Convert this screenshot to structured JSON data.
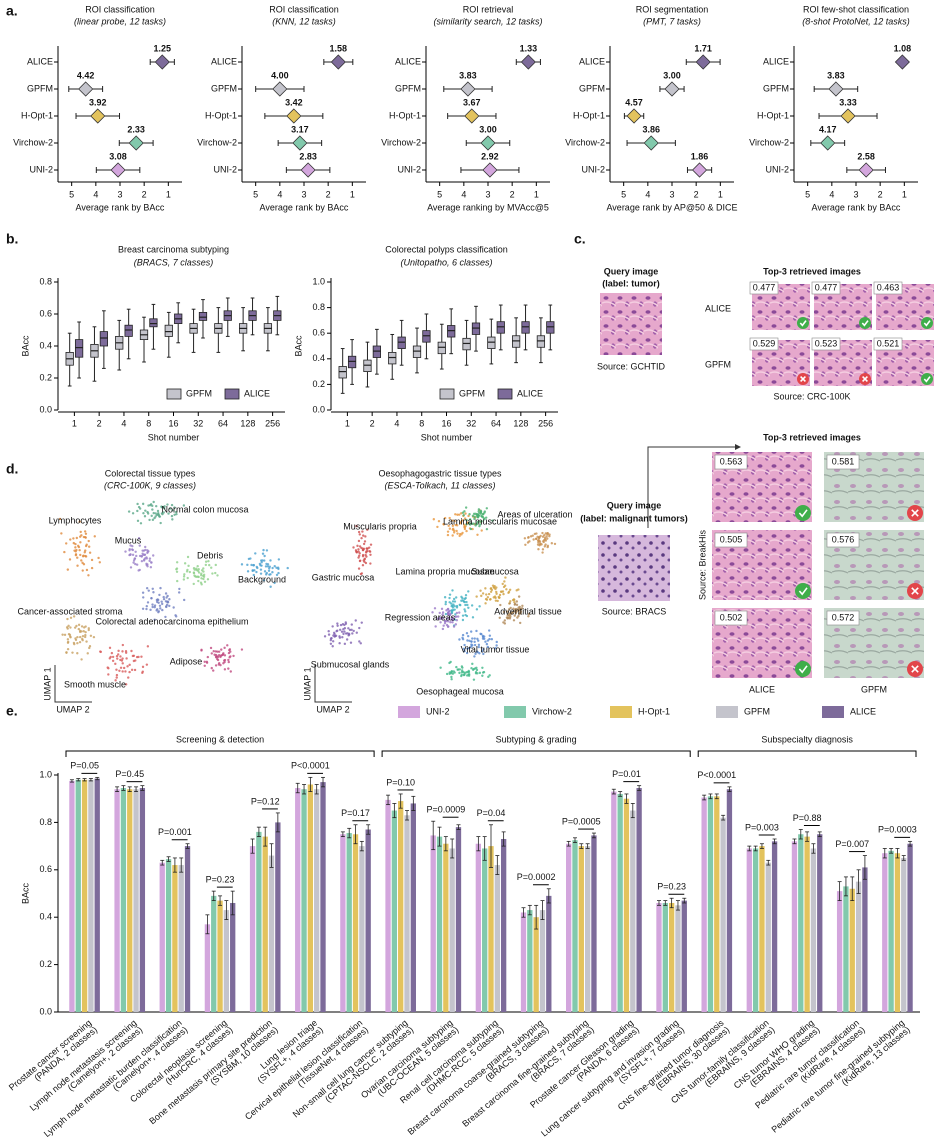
{
  "panels": [
    "a.",
    "b.",
    "c.",
    "d.",
    "e."
  ],
  "chart_data": [
    {
      "type": "rank",
      "title": "ROI classification",
      "subtitle": "(linear probe, 12 tasks)",
      "xlabel": "Average rank by BAcc",
      "categories": [
        "ALICE",
        "GPFM",
        "H-Opt-1",
        "Virchow-2",
        "UNI-2"
      ],
      "colors": [
        "#7d6b9a",
        "#c4c4cc",
        "#e3c35d",
        "#82c9ac",
        "#d3a6dd"
      ],
      "values": [
        1.25,
        4.42,
        3.92,
        2.33,
        3.08
      ],
      "value_labels": [
        "1.25",
        "4.42",
        "3.92",
        "2.33",
        "3.08"
      ],
      "errors": [
        0.5,
        0.7,
        0.9,
        0.7,
        0.9
      ],
      "xlim": [
        5.4,
        0.6
      ],
      "xticks": [
        5,
        4,
        3,
        2,
        1
      ]
    },
    {
      "type": "rank",
      "title": "ROI classification",
      "subtitle": "(KNN, 12 tasks)",
      "xlabel": "Average rank by BAcc",
      "categories": [
        "ALICE",
        "GPFM",
        "H-Opt-1",
        "Virchow-2",
        "UNI-2"
      ],
      "colors": [
        "#7d6b9a",
        "#c4c4cc",
        "#e3c35d",
        "#82c9ac",
        "#d3a6dd"
      ],
      "values": [
        1.58,
        4.0,
        3.42,
        3.17,
        2.83
      ],
      "value_labels": [
        "1.58",
        "4.00",
        "3.42",
        "3.17",
        "2.83"
      ],
      "errors": [
        0.6,
        1.0,
        1.2,
        0.9,
        0.9
      ],
      "xlim": [
        5.4,
        0.6
      ],
      "xticks": [
        5,
        4,
        3,
        2,
        1
      ]
    },
    {
      "type": "rank",
      "title": "ROI retrieval",
      "subtitle": "(similarity search, 12 tasks)",
      "xlabel": "Average ranking by MVAcc@5",
      "categories": [
        "ALICE",
        "GPFM",
        "H-Opt-1",
        "Virchow-2",
        "UNI-2"
      ],
      "colors": [
        "#7d6b9a",
        "#c4c4cc",
        "#e3c35d",
        "#82c9ac",
        "#d3a6dd"
      ],
      "values": [
        1.33,
        3.83,
        3.67,
        3.0,
        2.92
      ],
      "value_labels": [
        "1.33",
        "3.83",
        "3.67",
        "3.00",
        "2.92"
      ],
      "errors": [
        0.5,
        1.0,
        1.0,
        0.9,
        1.2
      ],
      "xlim": [
        5.4,
        0.6
      ],
      "xticks": [
        5,
        4,
        3,
        2,
        1
      ]
    },
    {
      "type": "rank",
      "title": "ROI segmentation",
      "subtitle": "(PMT, 7 tasks)",
      "xlabel": "Average rank by AP@50 & DICE",
      "categories": [
        "ALICE",
        "GPFM",
        "H-Opt-1",
        "Virchow-2",
        "UNI-2"
      ],
      "colors": [
        "#7d6b9a",
        "#c4c4cc",
        "#e3c35d",
        "#82c9ac",
        "#d3a6dd"
      ],
      "values": [
        1.71,
        3.0,
        4.57,
        3.86,
        1.86
      ],
      "value_labels": [
        "1.71",
        "3.00",
        "4.57",
        "3.86",
        "1.86"
      ],
      "errors": [
        0.7,
        0.5,
        0.4,
        1.0,
        0.5
      ],
      "xlim": [
        5.4,
        0.6
      ],
      "xticks": [
        5,
        4,
        3,
        2,
        1
      ]
    },
    {
      "type": "rank",
      "title": "ROI few-shot classification",
      "subtitle": "(8-shot ProtoNet, 12 tasks)",
      "xlabel": "Average rank by BAcc",
      "categories": [
        "ALICE",
        "GPFM",
        "H-Opt-1",
        "Virchow-2",
        "UNI-2"
      ],
      "colors": [
        "#7d6b9a",
        "#c4c4cc",
        "#e3c35d",
        "#82c9ac",
        "#d3a6dd"
      ],
      "values": [
        1.08,
        3.83,
        3.33,
        4.17,
        2.58
      ],
      "value_labels": [
        "1.08",
        "3.83",
        "3.33",
        "4.17",
        "2.58"
      ],
      "errors": [
        0.15,
        0.9,
        1.2,
        0.7,
        0.8
      ],
      "xlim": [
        5.4,
        0.6
      ],
      "xticks": [
        5,
        4,
        3,
        2,
        1
      ]
    },
    {
      "type": "box",
      "title": "Breast carcinoma subtyping",
      "subtitle": "(BRACS, 7 classes)",
      "ylabel": "BAcc",
      "xlabel": "Shot number",
      "categories": [
        1,
        2,
        4,
        8,
        16,
        32,
        64,
        128,
        256
      ],
      "legend": "lower right",
      "series": [
        {
          "name": "GPFM",
          "color": "#c4c4cc",
          "min": [
            0.15,
            0.18,
            0.25,
            0.3,
            0.33,
            0.36,
            0.36,
            0.37,
            0.37
          ],
          "q1": [
            0.28,
            0.33,
            0.38,
            0.44,
            0.46,
            0.48,
            0.48,
            0.48,
            0.48
          ],
          "median": [
            0.32,
            0.37,
            0.42,
            0.47,
            0.49,
            0.51,
            0.51,
            0.51,
            0.51
          ],
          "q3": [
            0.36,
            0.41,
            0.46,
            0.5,
            0.53,
            0.54,
            0.54,
            0.54,
            0.54
          ],
          "max": [
            0.48,
            0.52,
            0.56,
            0.58,
            0.61,
            0.63,
            0.64,
            0.64,
            0.64
          ]
        },
        {
          "name": "ALICE",
          "color": "#7d6b9a",
          "min": [
            0.2,
            0.26,
            0.32,
            0.38,
            0.42,
            0.45,
            0.46,
            0.47,
            0.47
          ],
          "q1": [
            0.33,
            0.4,
            0.46,
            0.52,
            0.54,
            0.56,
            0.56,
            0.56,
            0.56
          ],
          "median": [
            0.39,
            0.45,
            0.5,
            0.54,
            0.57,
            0.58,
            0.59,
            0.59,
            0.59
          ],
          "q3": [
            0.44,
            0.49,
            0.53,
            0.57,
            0.6,
            0.61,
            0.62,
            0.62,
            0.62
          ],
          "max": [
            0.55,
            0.62,
            0.63,
            0.66,
            0.67,
            0.69,
            0.7,
            0.7,
            0.71
          ]
        }
      ],
      "ylim": [
        0,
        0.8
      ],
      "yticks": [
        {
          "value": 0,
          "label": "0.0"
        },
        0.2,
        0.4,
        0.6,
        0.8
      ]
    },
    {
      "type": "box",
      "title": "Colorectal polyps classification",
      "subtitle": "(Unitopatho, 6 classes)",
      "ylabel": "BAcc",
      "xlabel": "Shot number",
      "categories": [
        1,
        2,
        4,
        8,
        16,
        32,
        64,
        128,
        256
      ],
      "legend": "lower right",
      "series": [
        {
          "name": "GPFM",
          "color": "#c4c4cc",
          "min": [
            0.13,
            0.18,
            0.24,
            0.29,
            0.32,
            0.35,
            0.36,
            0.37,
            0.37
          ],
          "q1": [
            0.25,
            0.3,
            0.36,
            0.41,
            0.44,
            0.47,
            0.48,
            0.49,
            0.49
          ],
          "median": [
            0.3,
            0.35,
            0.41,
            0.46,
            0.49,
            0.52,
            0.53,
            0.54,
            0.54
          ],
          "q3": [
            0.34,
            0.39,
            0.45,
            0.5,
            0.53,
            0.56,
            0.57,
            0.58,
            0.58
          ],
          "max": [
            0.48,
            0.53,
            0.59,
            0.64,
            0.67,
            0.7,
            0.71,
            0.72,
            0.72
          ]
        },
        {
          "name": "ALICE",
          "color": "#7d6b9a",
          "min": [
            0.2,
            0.28,
            0.35,
            0.4,
            0.44,
            0.46,
            0.47,
            0.47,
            0.47
          ],
          "q1": [
            0.33,
            0.41,
            0.48,
            0.53,
            0.57,
            0.59,
            0.6,
            0.6,
            0.6
          ],
          "median": [
            0.38,
            0.46,
            0.53,
            0.58,
            0.62,
            0.64,
            0.65,
            0.65,
            0.65
          ],
          "q3": [
            0.42,
            0.5,
            0.57,
            0.62,
            0.66,
            0.68,
            0.69,
            0.69,
            0.69
          ],
          "max": [
            0.55,
            0.63,
            0.7,
            0.75,
            0.79,
            0.81,
            0.82,
            0.82,
            0.82
          ]
        }
      ],
      "ylim": [
        0,
        1.0
      ],
      "yticks": [
        {
          "value": 0,
          "label": "0.0"
        },
        0.2,
        0.4,
        0.6,
        0.8,
        {
          "value": 1,
          "label": "1.0"
        }
      ]
    },
    {
      "type": "bar",
      "ylabel": "BAcc",
      "legend": "top",
      "groups": [
        "Screening & detection",
        "Subtyping & grading",
        "Subspecialty diagnosis"
      ],
      "categories": [
        "Prostate cancer screening",
        "Lymph node metastasis screening",
        "Lymph node metastatic burden classification",
        "Colorectal neoplasia screening",
        "Bone metastasis primary site prediction",
        "Lung lesion triage",
        "Cervical epithelial lesion classification",
        "Non-small cell lung cancer subtyping",
        "Ovarian carcinoma subtyping",
        "Renal cell carcinoma subtyping",
        "Breast carcinoma coarse-grained subtyping",
        "Breast carcinoma fine-grained subtyping",
        "Prostate cancer Gleason grading",
        "Lung cancer subtyping and invasion grading",
        "CNS fine-grained tumor diagnosis",
        "CNS tumor-family classification",
        "CNS tumor WHO grading",
        "Pediatric rare tumor classification",
        "Pediatric rare tumor fine-grained subtyping"
      ],
      "category_details": [
        "(PANDA, 2 classes)",
        "(Camelyon+, 2 classes)",
        "(Camelyon+, 4 classes)",
        "(HunCRC, 4 classes)",
        "(SYSBM, 10 classes)",
        "(SYSFL+, 4 classes)",
        "(TissueNet, 4 classes)",
        "(CPTAC-NSCLC, 2 classes)",
        "(UBC-OCEAN, 5 classes)",
        "(DHMC-RCC, 5 classes)",
        "(BRACS, 3 classes)",
        "(BRACS, 7 classes)",
        "(PANDA, 6 classes)",
        "(SYSFL+, 7 classes)",
        "(EBRAINS, 30 classes)",
        "(EBRAINS, 9 classes)",
        "(EBRAINS, 4 classes)",
        "(KidRare, 4 classes)",
        "(KidRare, 13 classes)"
      ],
      "p_values": [
        "P=0.05",
        "P=0.45",
        "P=0.001",
        "P=0.23",
        "P=0.12",
        "P<0.0001",
        "P=0.17",
        "P=0.10",
        "P=0.0009",
        "P=0.04",
        "P=0.0002",
        "P=0.0005",
        "P=0.01",
        "P=0.23",
        "P<0.0001",
        "P=0.003",
        "P=0.88",
        "P=0.007",
        "P=0.0003"
      ],
      "series": [
        {
          "name": "UNI-2",
          "color": "#d3a6dd",
          "values": [
            0.975,
            0.94,
            0.63,
            0.37,
            0.7,
            0.945,
            0.75,
            0.895,
            0.745,
            0.71,
            0.42,
            0.71,
            0.93,
            0.46,
            0.905,
            0.69,
            0.72,
            0.51,
            0.67
          ],
          "errors": [
            0.005,
            0.01,
            0.01,
            0.04,
            0.03,
            0.02,
            0.01,
            0.02,
            0.06,
            0.03,
            0.02,
            0.01,
            0.01,
            0.01,
            0.01,
            0.01,
            0.01,
            0.04,
            0.02
          ]
        },
        {
          "name": "Virchow-2",
          "color": "#82c9ac",
          "values": [
            0.98,
            0.945,
            0.645,
            0.49,
            0.76,
            0.94,
            0.755,
            0.85,
            0.74,
            0.69,
            0.43,
            0.725,
            0.92,
            0.46,
            0.91,
            0.69,
            0.75,
            0.53,
            0.68
          ],
          "errors": [
            0.005,
            0.01,
            0.01,
            0.02,
            0.02,
            0.02,
            0.02,
            0.03,
            0.04,
            0.05,
            0.02,
            0.01,
            0.01,
            0.01,
            0.01,
            0.01,
            0.02,
            0.04,
            0.01
          ]
        },
        {
          "name": "H-Opt-1",
          "color": "#e3c35d",
          "values": [
            0.98,
            0.94,
            0.62,
            0.47,
            0.74,
            0.96,
            0.75,
            0.89,
            0.71,
            0.7,
            0.4,
            0.7,
            0.9,
            0.46,
            0.91,
            0.7,
            0.74,
            0.52,
            0.67
          ],
          "errors": [
            0.005,
            0.01,
            0.03,
            0.02,
            0.04,
            0.03,
            0.04,
            0.03,
            0.03,
            0.09,
            0.05,
            0.01,
            0.02,
            0.02,
            0.01,
            0.01,
            0.02,
            0.05,
            0.02
          ]
        },
        {
          "name": "GPFM",
          "color": "#c4c4cc",
          "values": [
            0.98,
            0.94,
            0.62,
            0.43,
            0.66,
            0.94,
            0.7,
            0.83,
            0.69,
            0.62,
            0.43,
            0.7,
            0.85,
            0.45,
            0.82,
            0.63,
            0.69,
            0.55,
            0.65
          ],
          "errors": [
            0.005,
            0.01,
            0.03,
            0.04,
            0.05,
            0.02,
            0.02,
            0.02,
            0.04,
            0.04,
            0.04,
            0.01,
            0.03,
            0.02,
            0.01,
            0.01,
            0.02,
            0.05,
            0.01
          ]
        },
        {
          "name": "ALICE",
          "color": "#7d6b9a",
          "values": [
            0.985,
            0.945,
            0.7,
            0.46,
            0.8,
            0.97,
            0.77,
            0.88,
            0.78,
            0.73,
            0.49,
            0.745,
            0.945,
            0.47,
            0.94,
            0.72,
            0.75,
            0.61,
            0.71
          ],
          "errors": [
            0.005,
            0.01,
            0.01,
            0.05,
            0.04,
            0.02,
            0.02,
            0.03,
            0.01,
            0.03,
            0.03,
            0.01,
            0.01,
            0.01,
            0.01,
            0.01,
            0.01,
            0.05,
            0.01
          ]
        }
      ],
      "ylim": [
        0,
        1.0
      ],
      "yticks": [
        {
          "value": 0,
          "label": "0.0"
        },
        0.2,
        0.4,
        0.6,
        0.8,
        {
          "value": 1,
          "label": "1.0"
        }
      ]
    }
  ],
  "retrieval": [
    {
      "query_title": "Query image",
      "query_label": "(label: tumor)",
      "query_source": "Source: GCHTID",
      "results_title": "Top-3 retrieved images",
      "results_source": "Source: CRC-100K",
      "rows": [
        {
          "name": "ALICE",
          "scores": [
            0.477,
            0.477,
            0.463
          ],
          "correct": [
            true,
            true,
            true
          ]
        },
        {
          "name": "GPFM",
          "scores": [
            0.529,
            0.523,
            0.521
          ],
          "correct": [
            false,
            false,
            true
          ]
        }
      ]
    },
    {
      "query_title": "Query image",
      "query_label": "(label: malignant tumors)",
      "query_source": "Source: BRACS",
      "results_title": "Top-3 retrieved images",
      "results_source": "Source: BreakHis",
      "rows": [
        {
          "name": "ALICE",
          "scores": [
            0.563,
            0.505,
            0.502
          ],
          "correct": [
            true,
            true,
            true
          ]
        },
        {
          "name": "GPFM",
          "scores": [
            0.581,
            0.576,
            0.572
          ],
          "correct": [
            false,
            false,
            false
          ]
        }
      ]
    }
  ],
  "umap": [
    {
      "title": "Colorectal tissue types",
      "subtitle": "(CRC-100K, 9 classes)",
      "y_label": "UMAP 1",
      "x_label": "UMAP 2",
      "clusters": [
        {
          "label": "Lymphocytes",
          "color": "#e08a3c"
        },
        {
          "label": "Mucus",
          "color": "#9a7fc8"
        },
        {
          "label": "Normal colon mucosa",
          "color": "#5aa888"
        },
        {
          "label": "Debris",
          "color": "#8fd08a"
        },
        {
          "label": "Background",
          "color": "#4aa0d0"
        },
        {
          "label": "Cancer-associated stroma",
          "color": "#c8a060"
        },
        {
          "label": "Colorectal adenocarcinoma epithelium",
          "color": "#7080c0"
        },
        {
          "label": "Smooth muscle",
          "color": "#d85a5a"
        },
        {
          "label": "Adipose",
          "color": "#c04a80"
        }
      ]
    },
    {
      "title": "Oesophagogastric tissue types",
      "subtitle": "(ESCA-Tolkach, 11 classes)",
      "y_label": "UMAP 1",
      "x_label": "UMAP 2",
      "clusters": [
        {
          "label": "Muscularis propria",
          "color": "#e8963c"
        },
        {
          "label": "Lamina muscularis mucosae",
          "color": "#4ab070"
        },
        {
          "label": "Areas of ulceration",
          "color": "#c89050"
        },
        {
          "label": "Gastric mucosa",
          "color": "#d05050"
        },
        {
          "label": "Lamina propria mucosae",
          "color": "#40b0c0"
        },
        {
          "label": "Submucosa",
          "color": "#d0a040"
        },
        {
          "label": "Adventitial tissue",
          "color": "#b08858"
        },
        {
          "label": "Regression areas",
          "color": "#9a78c8"
        },
        {
          "label": "Vital tumor tissue",
          "color": "#5888d0"
        },
        {
          "label": "Submucosal glands",
          "color": "#8060b0"
        },
        {
          "label": "Oesophageal mucosa",
          "color": "#40b888"
        }
      ]
    }
  ]
}
